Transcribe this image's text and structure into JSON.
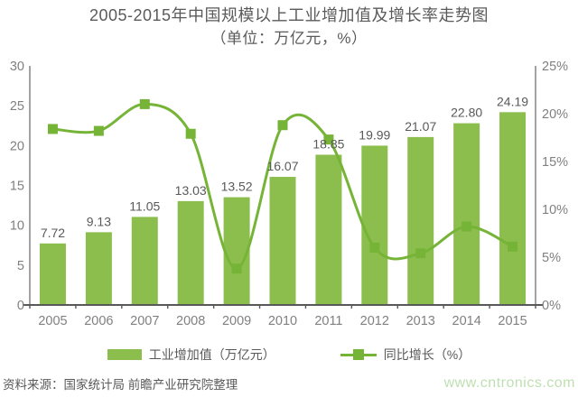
{
  "title": "2005-2015年中国规模以上工业增加值及增长率走势图",
  "subtitle": "（单位：万亿元，%）",
  "legend": {
    "bar_label": "工业增加值（万亿元）",
    "line_label": "同比增长（%）"
  },
  "footer": {
    "source": "资料来源：国家统计局 前瞻产业研究院整理",
    "watermark": "www.cntronics.com"
  },
  "colors": {
    "bar": "#8CBE4E",
    "line": "#76B437",
    "title_text": "#5A5A5A",
    "axis_text": "#808080",
    "value_label_text": "#595959",
    "axis_line": "#8C8C8C",
    "baseline": "#595959",
    "watermark": "#BFDFB2"
  },
  "chart_data": {
    "type": "bar",
    "combo": "bar+line",
    "title": "2005-2015年中国规模以上工业增加值及增长率走势图（单位：万亿元，%）",
    "categories": [
      "2005",
      "2006",
      "2007",
      "2008",
      "2009",
      "2010",
      "2011",
      "2012",
      "2013",
      "2014",
      "2015"
    ],
    "series": [
      {
        "name": "工业增加值（万亿元）",
        "type": "bar",
        "axis": "left",
        "values": [
          7.72,
          9.13,
          11.05,
          13.03,
          13.52,
          16.07,
          18.85,
          19.99,
          21.07,
          22.8,
          24.19
        ],
        "labels": [
          "7.72",
          "9.13",
          "11.05",
          "13.03",
          "13.52",
          "16.07",
          "18.85",
          "19.99",
          "21.07",
          "22.80",
          "24.19"
        ],
        "color": "#8CBE4E"
      },
      {
        "name": "同比增长（%）",
        "type": "line",
        "axis": "right",
        "values": [
          18.4,
          18.2,
          21.0,
          17.9,
          3.8,
          18.8,
          17.3,
          6.0,
          5.4,
          8.2,
          6.1
        ],
        "color": "#76B437",
        "marker": "square",
        "smooth": true
      }
    ],
    "left_axis": {
      "ticks": [
        "0",
        "5",
        "10",
        "15",
        "20",
        "25",
        "30"
      ],
      "min": 0,
      "max": 30
    },
    "right_axis": {
      "ticks": [
        "0%",
        "5%",
        "10%",
        "15%",
        "20%",
        "25%"
      ],
      "min": 0,
      "max": 25
    },
    "grid": false,
    "legend_position": "bottom"
  }
}
